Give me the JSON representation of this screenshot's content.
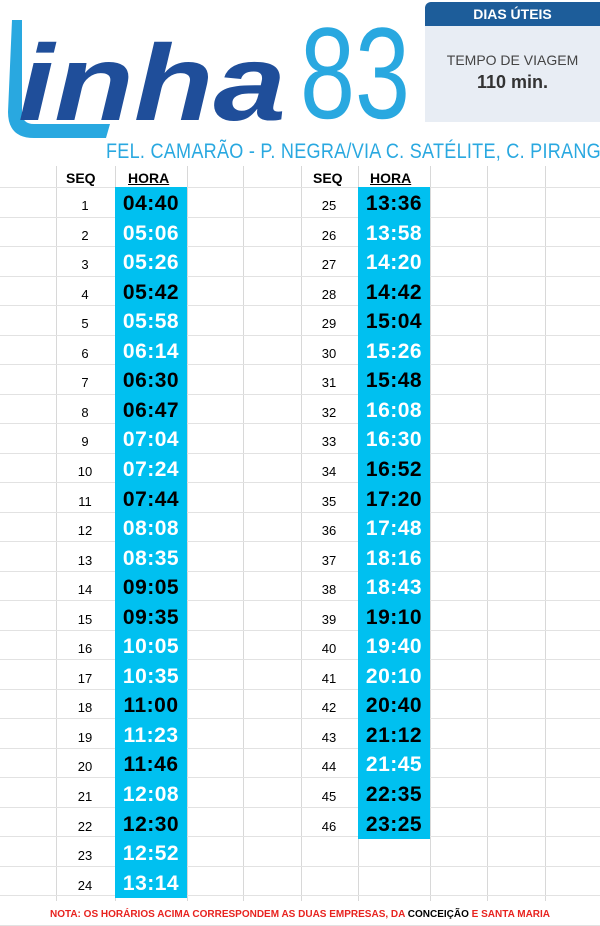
{
  "logo": {
    "word": "inha",
    "number": "83"
  },
  "badge": {
    "days": "DIAS ÚTEIS"
  },
  "travel": {
    "label": "TEMPO DE VIAGEM",
    "value": "110 min."
  },
  "route": {
    "title": "FEL. CAMARÃO - P. NEGRA/VIA C. SATÉLITE, C. PIRANGI"
  },
  "columns": {
    "seq": "SEQ",
    "hora": "HORA"
  },
  "colors": {
    "hora_bg": "#00c0f0",
    "brand_dark": "#1f4e9a",
    "brand_light": "#29a8e0",
    "note": "#e8231f"
  },
  "left_rows": [
    {
      "seq": "1",
      "time": "04:40",
      "style": "dark"
    },
    {
      "seq": "2",
      "time": "05:06",
      "style": "light"
    },
    {
      "seq": "3",
      "time": "05:26",
      "style": "light"
    },
    {
      "seq": "4",
      "time": "05:42",
      "style": "dark"
    },
    {
      "seq": "5",
      "time": "05:58",
      "style": "light"
    },
    {
      "seq": "6",
      "time": "06:14",
      "style": "light"
    },
    {
      "seq": "7",
      "time": "06:30",
      "style": "dark"
    },
    {
      "seq": "8",
      "time": "06:47",
      "style": "dark"
    },
    {
      "seq": "9",
      "time": "07:04",
      "style": "light"
    },
    {
      "seq": "10",
      "time": "07:24",
      "style": "light"
    },
    {
      "seq": "11",
      "time": "07:44",
      "style": "dark"
    },
    {
      "seq": "12",
      "time": "08:08",
      "style": "light"
    },
    {
      "seq": "13",
      "time": "08:35",
      "style": "light"
    },
    {
      "seq": "14",
      "time": "09:05",
      "style": "dark"
    },
    {
      "seq": "15",
      "time": "09:35",
      "style": "dark"
    },
    {
      "seq": "16",
      "time": "10:05",
      "style": "light"
    },
    {
      "seq": "17",
      "time": "10:35",
      "style": "light"
    },
    {
      "seq": "18",
      "time": "11:00",
      "style": "dark"
    },
    {
      "seq": "19",
      "time": "11:23",
      "style": "light"
    },
    {
      "seq": "20",
      "time": "11:46",
      "style": "dark"
    },
    {
      "seq": "21",
      "time": "12:08",
      "style": "light"
    },
    {
      "seq": "22",
      "time": "12:30",
      "style": "dark"
    },
    {
      "seq": "23",
      "time": "12:52",
      "style": "light"
    },
    {
      "seq": "24",
      "time": "13:14",
      "style": "light"
    }
  ],
  "right_rows": [
    {
      "seq": "25",
      "time": "13:36",
      "style": "dark"
    },
    {
      "seq": "26",
      "time": "13:58",
      "style": "light"
    },
    {
      "seq": "27",
      "time": "14:20",
      "style": "light"
    },
    {
      "seq": "28",
      "time": "14:42",
      "style": "dark"
    },
    {
      "seq": "29",
      "time": "15:04",
      "style": "dark"
    },
    {
      "seq": "30",
      "time": "15:26",
      "style": "light"
    },
    {
      "seq": "31",
      "time": "15:48",
      "style": "dark"
    },
    {
      "seq": "32",
      "time": "16:08",
      "style": "light"
    },
    {
      "seq": "33",
      "time": "16:30",
      "style": "light"
    },
    {
      "seq": "34",
      "time": "16:52",
      "style": "dark"
    },
    {
      "seq": "35",
      "time": "17:20",
      "style": "dark"
    },
    {
      "seq": "36",
      "time": "17:48",
      "style": "light"
    },
    {
      "seq": "37",
      "time": "18:16",
      "style": "light"
    },
    {
      "seq": "38",
      "time": "18:43",
      "style": "light"
    },
    {
      "seq": "39",
      "time": "19:10",
      "style": "dark"
    },
    {
      "seq": "40",
      "time": "19:40",
      "style": "light"
    },
    {
      "seq": "41",
      "time": "20:10",
      "style": "light"
    },
    {
      "seq": "42",
      "time": "20:40",
      "style": "dark"
    },
    {
      "seq": "43",
      "time": "21:12",
      "style": "dark"
    },
    {
      "seq": "44",
      "time": "21:45",
      "style": "light"
    },
    {
      "seq": "45",
      "time": "22:35",
      "style": "dark"
    },
    {
      "seq": "46",
      "time": "23:25",
      "style": "dark"
    }
  ],
  "note": {
    "part1": "NOTA: OS HORÁRIOS ACIMA CORRESPONDEM AS DUAS EMPRESAS, DA ",
    "part2": "CONCEIÇÃO",
    "part3": " E ",
    "part4": "SANTA MARIA"
  }
}
